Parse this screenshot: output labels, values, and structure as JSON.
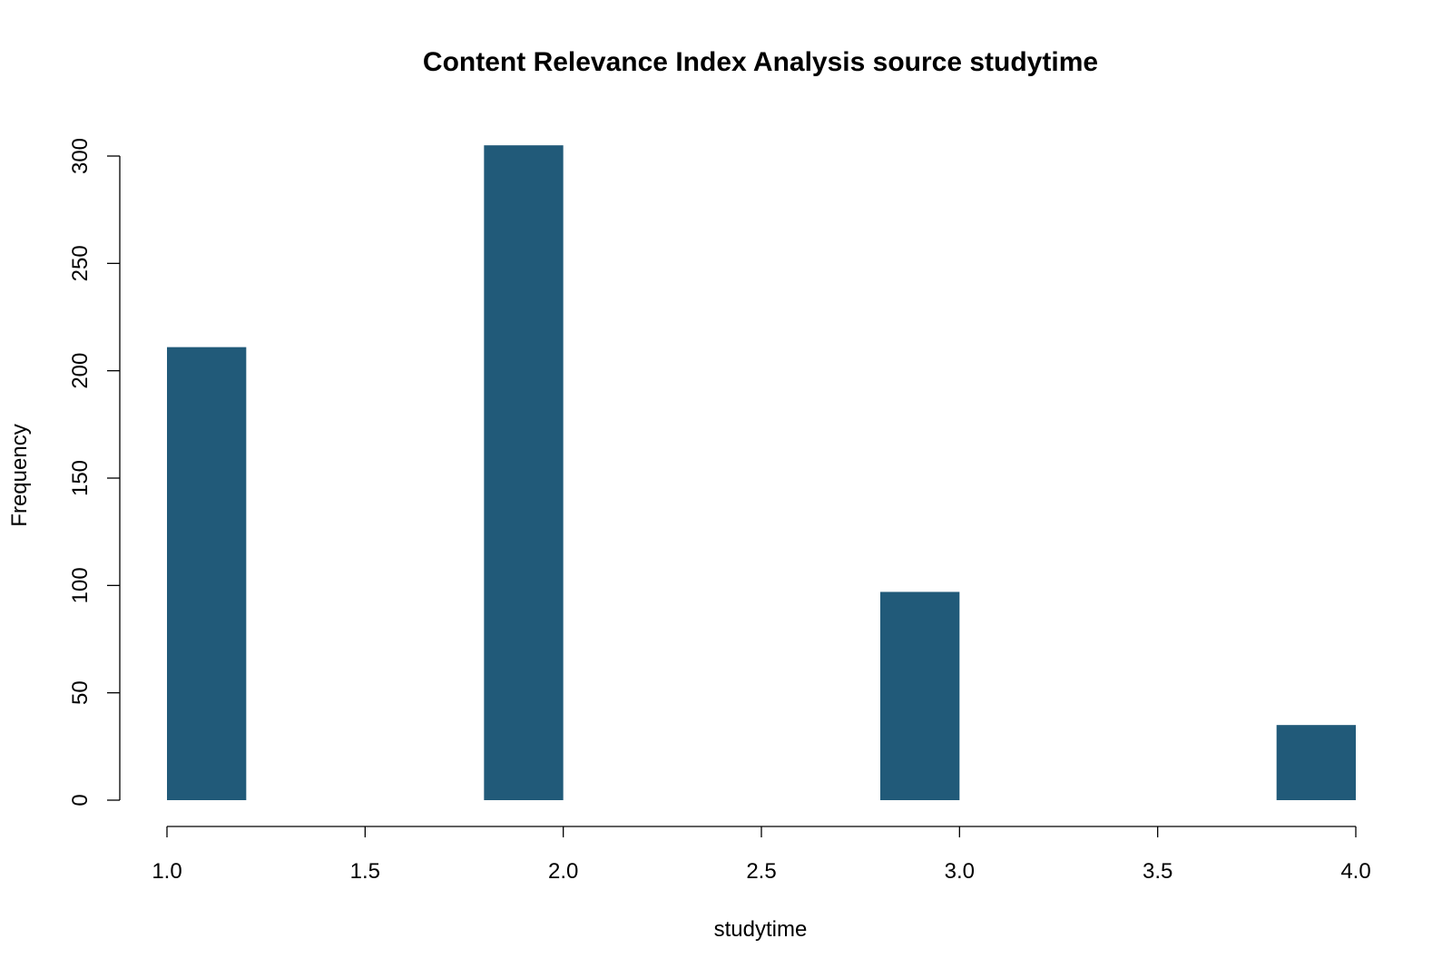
{
  "chart_data": {
    "type": "bar",
    "title": "Content Relevance Index Analysis source studytime",
    "xlabel": "studytime",
    "ylabel": "Frequency",
    "xlim": [
      1.0,
      4.0
    ],
    "ylim": [
      0,
      300
    ],
    "x_ticks": [
      "1.0",
      "1.5",
      "2.0",
      "2.5",
      "3.0",
      "3.5",
      "4.0"
    ],
    "y_ticks": [
      "0",
      "50",
      "100",
      "150",
      "200",
      "250",
      "300"
    ],
    "bins": [
      {
        "x_start": 1.0,
        "x_end": 1.2,
        "value": 211
      },
      {
        "x_start": 1.8,
        "x_end": 2.0,
        "value": 305
      },
      {
        "x_start": 2.8,
        "x_end": 3.0,
        "value": 97
      },
      {
        "x_start": 3.8,
        "x_end": 4.0,
        "value": 35
      }
    ],
    "bar_color": "#215a79",
    "grid": false
  }
}
